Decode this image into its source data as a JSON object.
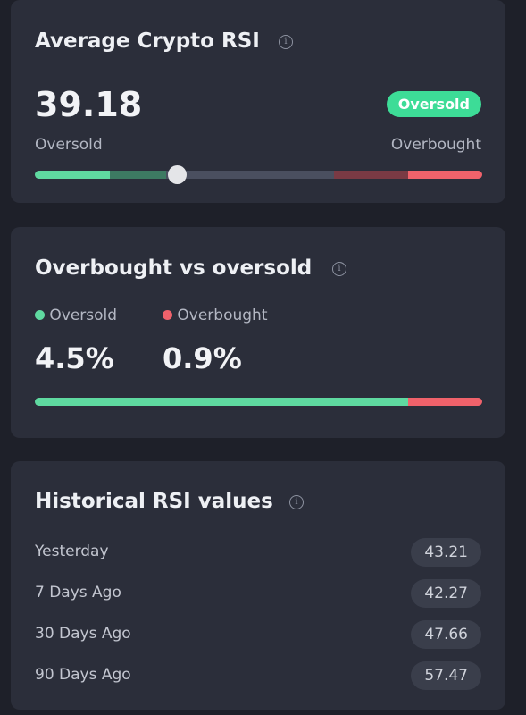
{
  "rsi_card": {
    "title": "Average Crypto RSI",
    "value": "39.18",
    "badge": "Oversold",
    "scale_left": "Oversold",
    "scale_right": "Overbought"
  },
  "ratio_card": {
    "title": "Overbought vs oversold",
    "legend": [
      {
        "name": "Oversold",
        "value": "4.5%"
      },
      {
        "name": "Overbought",
        "value": "0.9%"
      }
    ]
  },
  "history_card": {
    "title": "Historical RSI values",
    "rows": [
      [
        "Yesterday",
        "43.21"
      ],
      [
        "7 Days Ago",
        "42.27"
      ],
      [
        "30 Days Ago",
        "47.66"
      ],
      [
        "90 Days Ago",
        "57.47"
      ]
    ]
  }
}
